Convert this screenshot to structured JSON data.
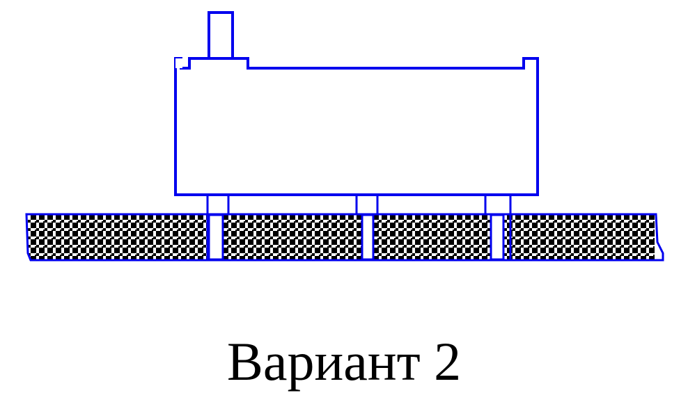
{
  "caption": "Вариант 2",
  "colors": {
    "outline": "#0000ee",
    "background": "#ffffff",
    "pattern_dark": "#000000",
    "caption": "#000000"
  },
  "component": {
    "lead_count": 3
  }
}
